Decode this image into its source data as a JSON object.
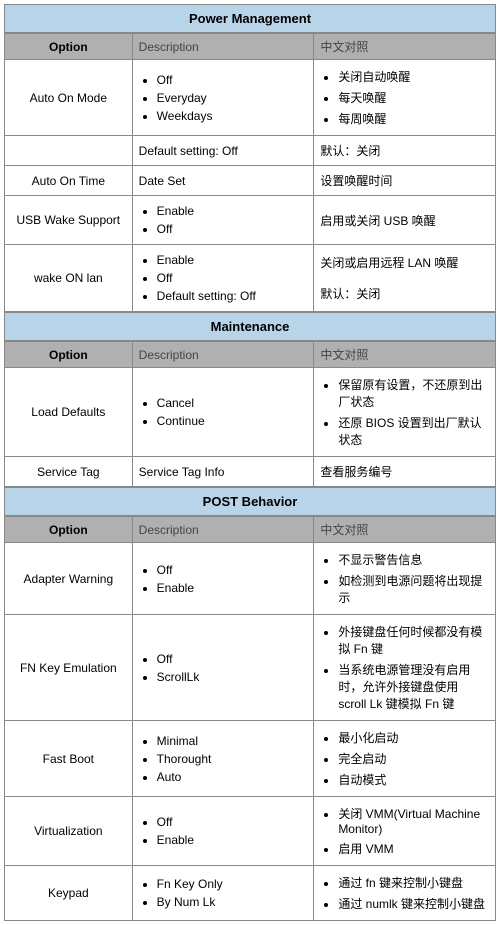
{
  "colors": {
    "header_bg": "#b8d4e8",
    "subheader_bg": "#b0b0b0",
    "border": "#888888",
    "text": "#000000",
    "bg": "#ffffff"
  },
  "fonts": {
    "body_size": 12,
    "title_size": 13,
    "title_weight": "bold"
  },
  "sections": [
    {
      "title": "Power Management",
      "header": {
        "option": "Option",
        "description": "Description",
        "cn": "中文对照"
      },
      "rows": [
        {
          "option": "Auto On Mode",
          "desc_list": [
            "Off",
            "Everyday",
            "Weekdays"
          ],
          "cn_list": [
            "关闭自动唤醒",
            "每天唤醒",
            "每周唤醒"
          ]
        },
        {
          "option": "",
          "desc_text": "Default setting: Off",
          "cn_text": "默认：关闭"
        },
        {
          "option": "Auto On Time",
          "desc_text": "Date Set",
          "cn_text": "设置唤醒时间"
        },
        {
          "option": "USB Wake Support",
          "desc_list": [
            "Enable",
            "Off"
          ],
          "cn_text": "启用或关闭 USB 唤醒"
        },
        {
          "option": "wake ON lan",
          "desc_list": [
            "Enable",
            "Off",
            "Default setting: Off"
          ],
          "cn_text_top": "关闭或启用远程 LAN 唤醒",
          "cn_text_bottom": "默认：关闭"
        }
      ]
    },
    {
      "title": "Maintenance",
      "header": {
        "option": "Option",
        "description": "Description",
        "cn": "中文对照"
      },
      "rows": [
        {
          "option": "Load Defaults",
          "desc_list": [
            "Cancel",
            "Continue"
          ],
          "cn_list": [
            "保留原有设置，不还原到出厂状态",
            "还原 BIOS 设置到出厂默认状态"
          ]
        },
        {
          "option": "Service Tag",
          "desc_text": "Service Tag Info",
          "cn_text": "查看服务编号"
        }
      ]
    },
    {
      "title": "POST Behavior",
      "header": {
        "option": "Option",
        "description": "Description",
        "cn": "中文对照"
      },
      "rows": [
        {
          "option": "Adapter Warning",
          "desc_list": [
            "Off",
            "Enable"
          ],
          "cn_list": [
            "不显示警告信息",
            "如检测到电源问题将出现提示"
          ]
        },
        {
          "option": "FN Key Emulation",
          "desc_list": [
            "Off",
            "ScrollLk"
          ],
          "cn_list": [
            "外接键盘任何时候都没有模拟 Fn 键",
            "当系统电源管理没有启用时，允许外接键盘使用 scroll Lk 键模拟 Fn 键"
          ]
        },
        {
          "option": "Fast Boot",
          "desc_list": [
            "Minimal",
            "Thorought",
            "Auto"
          ],
          "cn_list": [
            "最小化启动",
            "完全启动",
            "自动模式"
          ]
        },
        {
          "option": "Virtualization",
          "desc_list": [
            "Off",
            "Enable"
          ],
          "cn_list": [
            "关闭 VMM(Virtual Machine Monitor)",
            "启用 VMM"
          ]
        },
        {
          "option": "Keypad",
          "desc_list": [
            "Fn Key Only",
            "By Num Lk"
          ],
          "cn_list": [
            "通过 fn 键来控制小键盘",
            "通过 numlk 键来控制小键盘"
          ]
        }
      ]
    }
  ]
}
